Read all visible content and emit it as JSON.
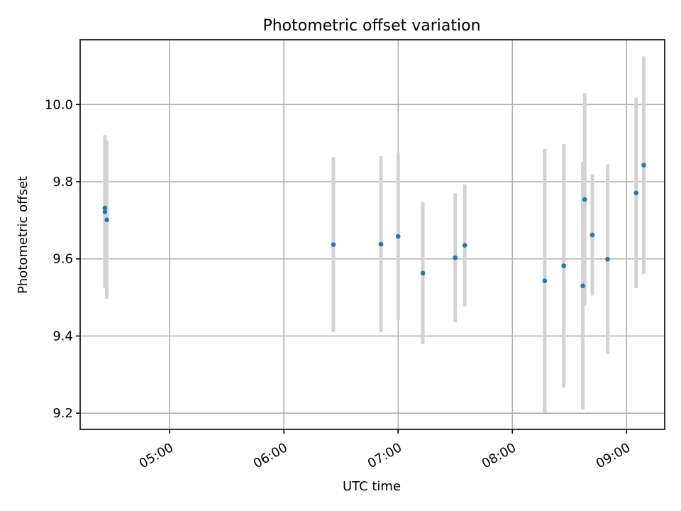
{
  "chart_data": {
    "type": "scatter",
    "title": "Photometric offset variation",
    "xlabel": "UTC time",
    "ylabel": "Photometric offset",
    "grid": true,
    "xlim": [
      "04:13",
      "09:20"
    ],
    "ylim": [
      9.158,
      10.168
    ],
    "x_ticks": [
      "05:00",
      "06:00",
      "07:00",
      "08:00",
      "09:00"
    ],
    "y_ticks": [
      "9.2",
      "9.4",
      "9.6",
      "9.8",
      "10.0"
    ],
    "colors": {
      "point": "#1f77b4",
      "errorbar": "#d3d3d3",
      "grid": "#b0b0b0"
    },
    "series": [
      {
        "x": [
          "04:26",
          "04:26",
          "04:27",
          "06:26",
          "06:51",
          "07:00",
          "07:13",
          "07:30",
          "07:35",
          "08:17",
          "08:27",
          "08:37",
          "08:50",
          "08:38",
          "08:42",
          "09:05",
          "09:09"
        ],
        "y": [
          9.732,
          9.722,
          9.701,
          9.637,
          9.638,
          9.658,
          9.563,
          9.603,
          9.635,
          9.543,
          9.582,
          9.53,
          9.599,
          9.754,
          9.662,
          9.771,
          9.843
        ],
        "yerr": [
          0.188,
          0.198,
          0.205,
          0.227,
          0.228,
          0.217,
          0.184,
          0.167,
          0.158,
          0.342,
          0.316,
          0.321,
          0.246,
          0.275,
          0.157,
          0.247,
          0.282
        ]
      }
    ]
  }
}
